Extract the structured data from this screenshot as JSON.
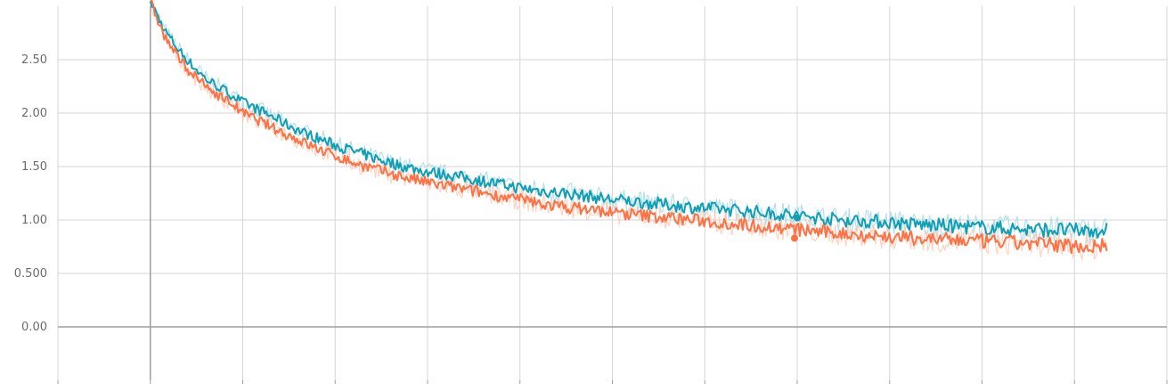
{
  "chart_data": {
    "type": "line",
    "title": "",
    "xlabel": "",
    "ylabel": "",
    "grid": true,
    "legend": "none",
    "xlim": [
      -1,
      11
    ],
    "ylim": [
      -0.5,
      3.0
    ],
    "y_ticks": [
      {
        "value": 0.0,
        "label": "0.00"
      },
      {
        "value": 0.5,
        "label": "0.500"
      },
      {
        "value": 1.0,
        "label": "1.00"
      },
      {
        "value": 1.5,
        "label": "1.50"
      },
      {
        "value": 2.0,
        "label": "2.00"
      },
      {
        "value": 2.5,
        "label": "2.50"
      }
    ],
    "x_grid": [
      -1,
      0,
      1,
      2,
      3,
      4,
      5,
      6,
      7,
      8,
      9,
      10,
      11
    ],
    "x_domain": [
      0,
      10.35
    ],
    "highlight_point": {
      "x": 7.0,
      "y": 1.02
    },
    "series": [
      {
        "color": "#0f9fb5",
        "raw_color": "#a8dbe6",
        "x": [
          0.0,
          0.15,
          0.3,
          0.45,
          0.6,
          0.75,
          0.9,
          1.0,
          1.2,
          1.4,
          1.6,
          1.8,
          2.0,
          2.25,
          2.5,
          2.75,
          3.0,
          3.25,
          3.5,
          3.75,
          4.0,
          4.25,
          4.5,
          4.75,
          5.0,
          5.25,
          5.5,
          5.75,
          6.0,
          6.25,
          6.5,
          6.75,
          7.0,
          7.25,
          7.5,
          7.75,
          8.0,
          8.25,
          8.5,
          8.75,
          9.0,
          9.25,
          9.5,
          9.75,
          10.0,
          10.2,
          10.35
        ],
        "y": [
          3.05,
          2.78,
          2.6,
          2.45,
          2.32,
          2.24,
          2.16,
          2.1,
          2.02,
          1.93,
          1.84,
          1.77,
          1.7,
          1.63,
          1.56,
          1.5,
          1.45,
          1.42,
          1.38,
          1.34,
          1.3,
          1.27,
          1.25,
          1.22,
          1.19,
          1.17,
          1.15,
          1.13,
          1.11,
          1.1,
          1.08,
          1.06,
          1.04,
          1.02,
          1.0,
          0.99,
          0.98,
          0.96,
          0.95,
          0.94,
          0.93,
          0.92,
          0.91,
          0.91,
          0.9,
          0.9,
          0.91
        ]
      },
      {
        "color": "#ff7043",
        "raw_color": "#ffcab5",
        "x": [
          0.0,
          0.15,
          0.3,
          0.45,
          0.6,
          0.75,
          0.9,
          1.0,
          1.2,
          1.4,
          1.6,
          1.8,
          2.0,
          2.25,
          2.5,
          2.75,
          3.0,
          3.25,
          3.5,
          3.75,
          4.0,
          4.25,
          4.5,
          4.75,
          5.0,
          5.25,
          5.5,
          5.75,
          6.0,
          6.25,
          6.5,
          6.75,
          7.0,
          7.25,
          7.5,
          7.75,
          8.0,
          8.25,
          8.5,
          8.75,
          9.0,
          9.25,
          9.5,
          9.75,
          10.0,
          10.2,
          10.35
        ],
        "y": [
          3.05,
          2.72,
          2.52,
          2.37,
          2.25,
          2.16,
          2.08,
          2.0,
          1.92,
          1.83,
          1.75,
          1.67,
          1.6,
          1.52,
          1.46,
          1.4,
          1.35,
          1.31,
          1.27,
          1.23,
          1.19,
          1.15,
          1.12,
          1.1,
          1.07,
          1.05,
          1.03,
          1.01,
          0.99,
          0.97,
          0.95,
          0.93,
          0.91,
          0.89,
          0.87,
          0.86,
          0.84,
          0.83,
          0.82,
          0.81,
          0.8,
          0.79,
          0.78,
          0.77,
          0.76,
          0.75,
          0.77
        ]
      }
    ]
  }
}
